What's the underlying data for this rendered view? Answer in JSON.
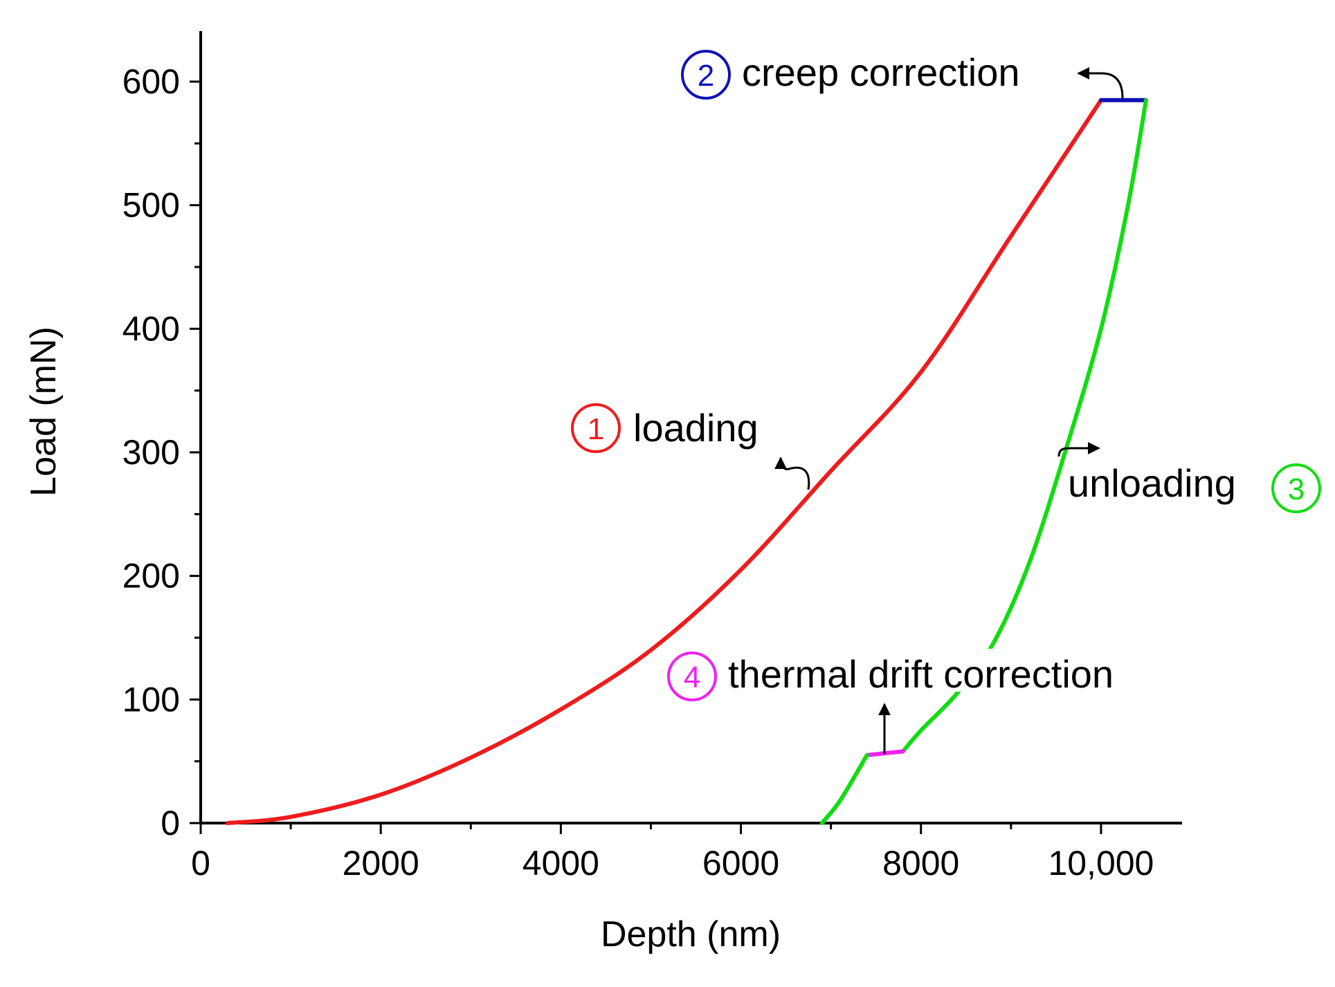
{
  "chart_data": {
    "type": "line",
    "title": "",
    "xlabel": "Depth (nm)",
    "ylabel": "Load (mN)",
    "xlim": [
      0,
      10900
    ],
    "ylim": [
      0,
      640
    ],
    "x_ticks": [
      0,
      2000,
      4000,
      6000,
      8000,
      10000
    ],
    "x_tick_labels": [
      "0",
      "2000",
      "4000",
      "6000",
      "8000",
      "10,000"
    ],
    "y_ticks": [
      0,
      100,
      200,
      300,
      400,
      500,
      600
    ],
    "y_tick_labels": [
      "0",
      "100",
      "200",
      "300",
      "400",
      "500",
      "600"
    ],
    "grid": false,
    "series": [
      {
        "name": "loading",
        "color": "#ee1c1c",
        "x": [
          300,
          1000,
          2000,
          3000,
          4000,
          5000,
          6000,
          7000,
          8000,
          9000,
          10000
        ],
        "y": [
          0,
          5,
          23,
          53,
          92,
          140,
          205,
          285,
          365,
          475,
          585
        ]
      },
      {
        "name": "creep correction",
        "color": "#1010b8",
        "x": [
          10000,
          10500
        ],
        "y": [
          585,
          585
        ]
      },
      {
        "name": "unloading",
        "color": "#11dd11",
        "x": [
          10500,
          10300,
          10000,
          9600,
          9200,
          8800,
          8400,
          8000,
          7800
        ],
        "y": [
          585,
          500,
          400,
          300,
          210,
          145,
          105,
          75,
          58
        ]
      },
      {
        "name": "thermal drift correction",
        "color": "#ee22ee",
        "x": [
          7400,
          7800
        ],
        "y": [
          55,
          58
        ]
      },
      {
        "name": "unloading tail",
        "color": "#11dd11",
        "x": [
          7400,
          7100,
          6900
        ],
        "y": [
          55,
          18,
          0
        ]
      }
    ],
    "annotations": [
      {
        "num": "1",
        "text": "loading",
        "color": "#ee1c1c"
      },
      {
        "num": "2",
        "text": "creep correction",
        "color": "#1010b8"
      },
      {
        "num": "3",
        "text": "unloading",
        "color": "#11dd11"
      },
      {
        "num": "4",
        "text": "thermal drift correction",
        "color": "#ee22ee"
      }
    ]
  }
}
